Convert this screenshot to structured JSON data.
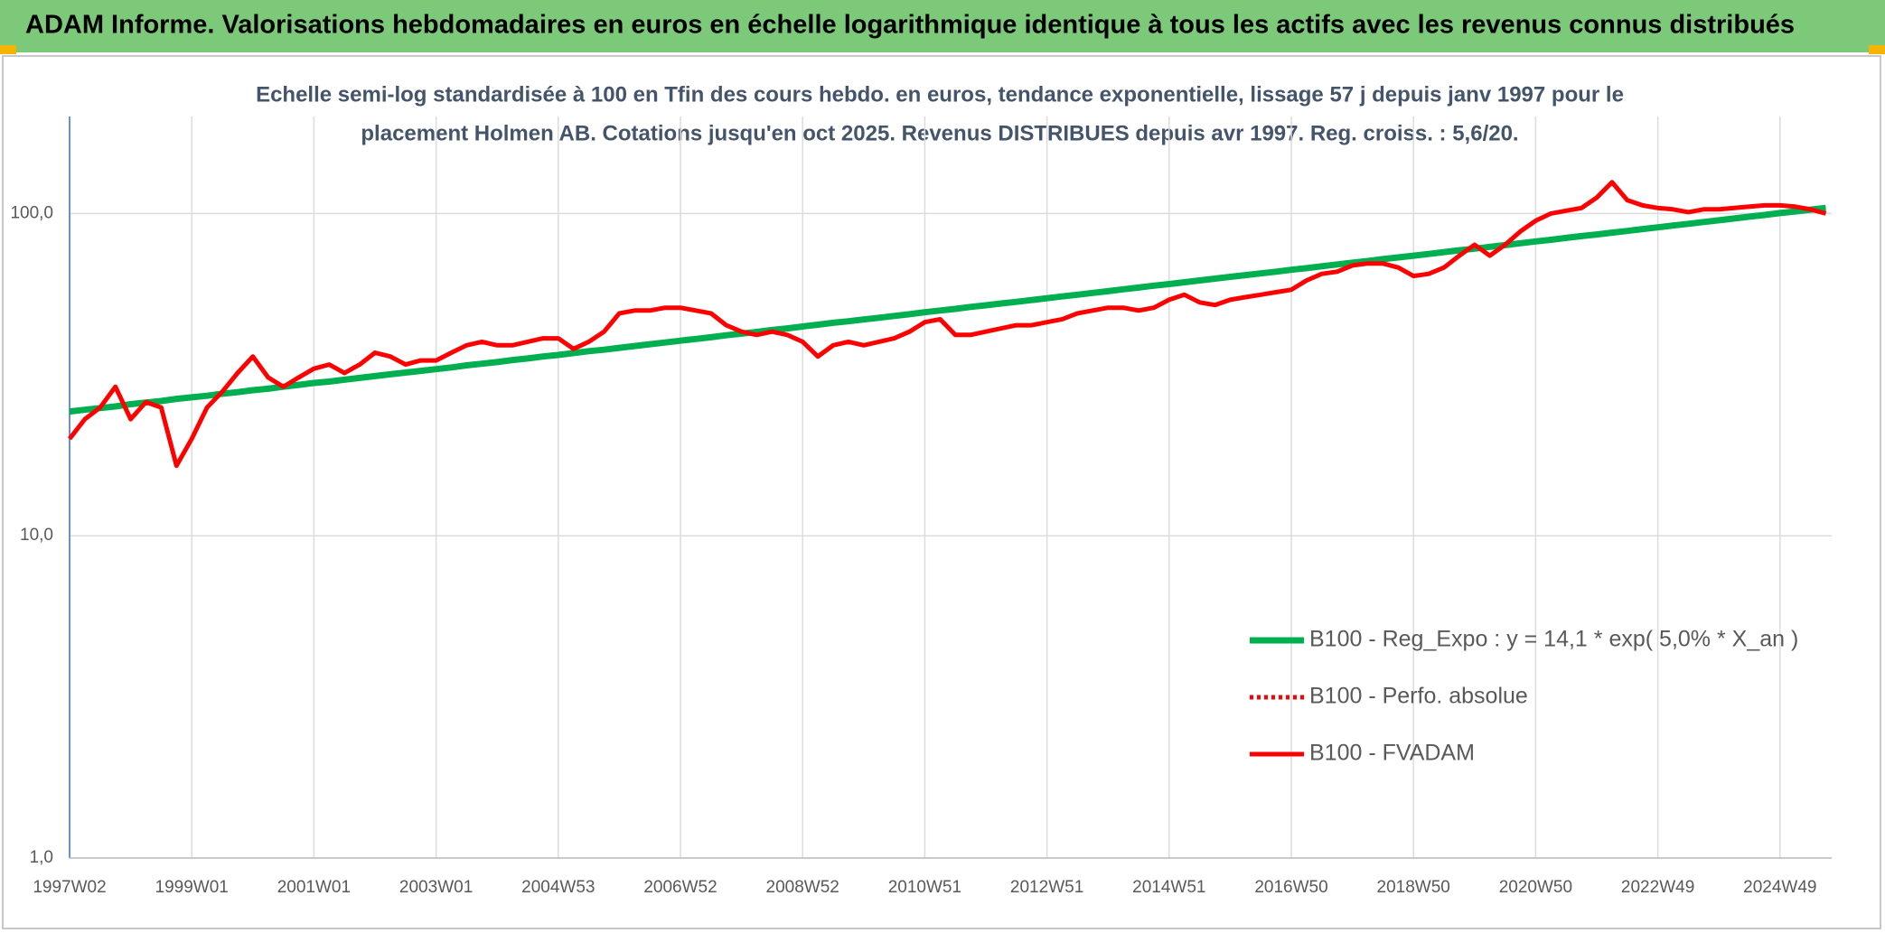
{
  "header": {
    "title": "ADAM Informe. Valorisations hebdomadaires en euros en échelle logarithmique identique à tous les actifs avec les revenus connus distribués"
  },
  "chart_data": {
    "type": "line",
    "title": [
      "Echelle semi-log standardisée à 100 en Tfin des cours hebdo. en euros, tendance exponentielle, lissage 57 j depuis janv 1997 pour le",
      "placement Holmen AB. Cotations jusqu'en oct 2025. Revenus DISTRIBUES depuis avr 1997. Reg. croiss. : 5,6/20."
    ],
    "categories": [
      "1997W02",
      null,
      null,
      null,
      null,
      null,
      null,
      null,
      "1999W01",
      null,
      null,
      null,
      null,
      null,
      null,
      null,
      "2001W01",
      null,
      null,
      null,
      null,
      null,
      null,
      null,
      "2003W01",
      null,
      null,
      null,
      null,
      null,
      null,
      null,
      "2004W53",
      null,
      null,
      null,
      null,
      null,
      null,
      null,
      "2006W52",
      null,
      null,
      null,
      null,
      null,
      null,
      null,
      "2008W52",
      null,
      null,
      null,
      null,
      null,
      null,
      null,
      "2010W51",
      null,
      null,
      null,
      null,
      null,
      null,
      null,
      "2012W51",
      null,
      null,
      null,
      null,
      null,
      null,
      null,
      "2014W51",
      null,
      null,
      null,
      null,
      null,
      null,
      null,
      "2016W50",
      null,
      null,
      null,
      null,
      null,
      null,
      null,
      "2018W50",
      null,
      null,
      null,
      null,
      null,
      null,
      null,
      "2020W50",
      null,
      null,
      null,
      null,
      null,
      null,
      null,
      "2022W49",
      null,
      null,
      null,
      null,
      null,
      null,
      null,
      "2024W49",
      null,
      null,
      null
    ],
    "series": [
      {
        "name": "B100 - Reg_Expo : y = 14,1 * exp( 5,0% *  X_an )",
        "color": "#00b050",
        "dash": "solid",
        "values": [
          24.3,
          24.6,
          24.9,
          25.2,
          25.6,
          25.9,
          26.2,
          26.6,
          26.9,
          27.2,
          27.6,
          27.9,
          28.3,
          28.6,
          29.0,
          29.4,
          29.8,
          30.1,
          30.5,
          30.9,
          31.3,
          31.7,
          32.1,
          32.5,
          32.9,
          33.3,
          33.8,
          34.2,
          34.6,
          35.1,
          35.5,
          36.0,
          36.4,
          36.9,
          37.4,
          37.8,
          38.3,
          38.8,
          39.3,
          39.8,
          40.3,
          40.8,
          41.3,
          41.9,
          42.4,
          42.9,
          43.5,
          44.0,
          44.6,
          45.2,
          45.8,
          46.3,
          46.9,
          47.5,
          48.1,
          48.7,
          49.4,
          50.0,
          50.6,
          51.3,
          51.9,
          52.6,
          53.2,
          53.9,
          54.6,
          55.3,
          56.0,
          56.7,
          57.4,
          58.2,
          58.9,
          59.7,
          60.4,
          61.2,
          62.0,
          62.8,
          63.6,
          64.4,
          65.2,
          66.0,
          66.9,
          67.7,
          68.6,
          69.5,
          70.4,
          71.2,
          72.2,
          73.1,
          74.0,
          74.9,
          75.9,
          76.9,
          77.8,
          78.8,
          79.8,
          80.9,
          81.9,
          82.9,
          84.0,
          85.1,
          86.1,
          87.2,
          88.3,
          89.5,
          90.6,
          91.8,
          92.9,
          94.1,
          95.3,
          96.5,
          97.8,
          99.0,
          100.3,
          101.5,
          102.8,
          104.1
        ]
      },
      {
        "name": "B100 - Perfo. absolue",
        "color": "#ff0000",
        "dash": "dotted",
        "values": [
          20,
          23,
          25,
          29,
          23,
          26,
          25,
          16.5,
          20,
          25,
          28,
          32,
          36,
          31,
          29,
          31,
          33,
          34,
          32,
          34,
          37,
          36,
          34,
          35,
          35,
          37,
          39,
          40,
          39,
          39,
          40,
          41,
          41,
          38,
          40,
          43,
          49,
          50,
          50,
          51,
          51,
          50,
          49,
          45,
          43,
          42,
          43,
          42,
          40,
          36,
          39,
          40,
          39,
          40,
          41,
          43,
          46,
          47,
          42,
          42,
          43,
          44,
          45,
          45,
          46,
          47,
          49,
          50,
          51,
          51,
          50,
          51,
          54,
          56,
          53,
          52,
          54,
          55,
          56,
          57,
          58,
          62,
          65,
          66,
          69,
          70,
          70,
          68,
          64,
          65,
          68,
          74,
          80,
          74,
          80,
          88,
          95,
          100,
          102,
          104,
          112,
          125,
          110,
          106,
          104,
          103,
          101,
          103,
          103,
          104,
          105,
          106,
          106,
          105,
          103,
          100
        ]
      },
      {
        "name": "B100 - FVADAM",
        "color": "#ff0000",
        "dash": "solid",
        "values": [
          20,
          23,
          25,
          29,
          23,
          26,
          25,
          16.5,
          20,
          25,
          28,
          32,
          36,
          31,
          29,
          31,
          33,
          34,
          32,
          34,
          37,
          36,
          34,
          35,
          35,
          37,
          39,
          40,
          39,
          39,
          40,
          41,
          41,
          38,
          40,
          43,
          49,
          50,
          50,
          51,
          51,
          50,
          49,
          45,
          43,
          42,
          43,
          42,
          40,
          36,
          39,
          40,
          39,
          40,
          41,
          43,
          46,
          47,
          42,
          42,
          43,
          44,
          45,
          45,
          46,
          47,
          49,
          50,
          51,
          51,
          50,
          51,
          54,
          56,
          53,
          52,
          54,
          55,
          56,
          57,
          58,
          62,
          65,
          66,
          69,
          70,
          70,
          68,
          64,
          65,
          68,
          74,
          80,
          74,
          80,
          88,
          95,
          100,
          102,
          104,
          112,
          125,
          110,
          106,
          104,
          103,
          101,
          103,
          103,
          104,
          105,
          106,
          106,
          105,
          103,
          100
        ]
      }
    ],
    "ylim": [
      1,
      200
    ],
    "log_y": true,
    "yticks": [
      {
        "value": 1,
        "label": "1,0"
      },
      {
        "value": 10,
        "label": "10,0"
      },
      {
        "value": 100,
        "label": "100,0"
      }
    ],
    "grid": true,
    "legend": "right"
  }
}
